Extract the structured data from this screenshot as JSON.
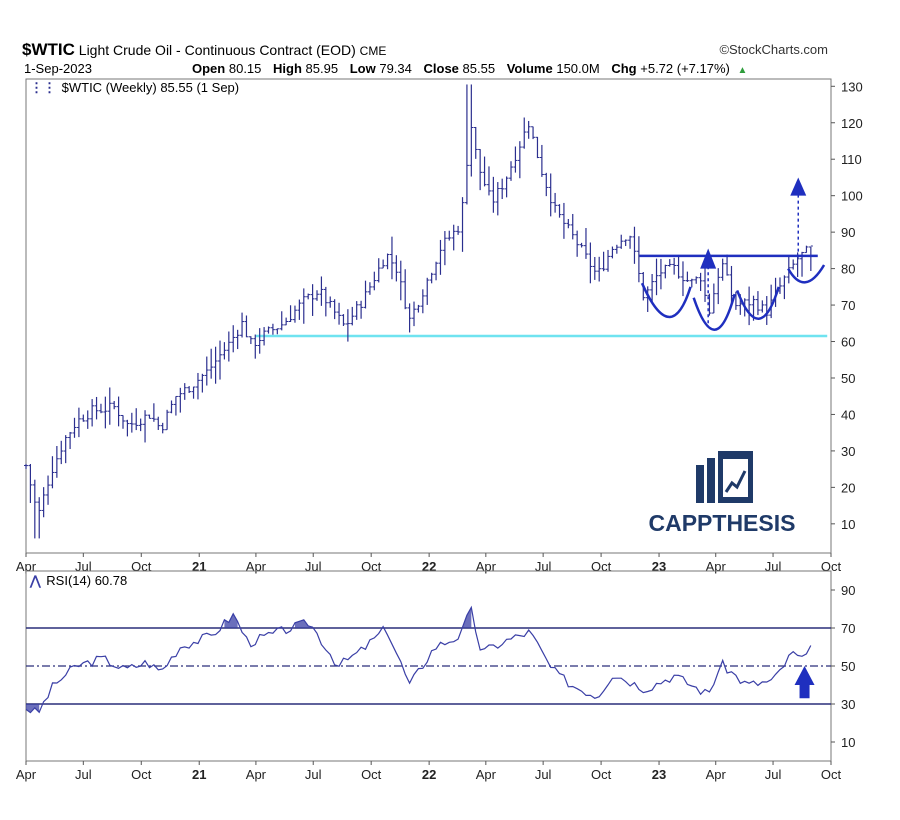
{
  "header": {
    "symbol": "$WTIC",
    "name": "Light Crude Oil - Continuous Contract (EOD)",
    "exchange": "CME",
    "credit": "©StockCharts.com",
    "date": "1-Sep-2023",
    "open_label": "Open",
    "open": "80.15",
    "high_label": "High",
    "high": "85.95",
    "low_label": "Low",
    "low": "79.34",
    "close_label": "Close",
    "close": "85.55",
    "volume_label": "Volume",
    "volume": "150.0M",
    "chg_label": "Chg",
    "chg": "+5.72 (+7.17%)"
  },
  "colors": {
    "bars": "#2b2f8f",
    "annotation": "#1f2fbf",
    "support": "#6fe3f0",
    "rsi_line": "#3a3fa6",
    "rsi_fill": "#3a3fa6",
    "logo": "#1f3a68"
  },
  "chart_data": [
    {
      "type": "ohlc",
      "legend": "$WTIC (Weekly) 85.55 (1 Sep)",
      "y_axis_side": "right",
      "ylim": [
        2,
        132
      ],
      "y_ticks": [
        10,
        20,
        30,
        40,
        50,
        60,
        70,
        80,
        90,
        100,
        110,
        120,
        130
      ],
      "x_range": [
        "2020-04-01",
        "2023-10-01"
      ],
      "x_ticks": [
        {
          "date": "2020-04-01",
          "label": "Apr",
          "bold": false
        },
        {
          "date": "2020-07-01",
          "label": "Jul",
          "bold": false
        },
        {
          "date": "2020-10-01",
          "label": "Oct",
          "bold": false
        },
        {
          "date": "2021-01-01",
          "label": "21",
          "bold": true
        },
        {
          "date": "2021-04-01",
          "label": "Apr",
          "bold": false
        },
        {
          "date": "2021-07-01",
          "label": "Jul",
          "bold": false
        },
        {
          "date": "2021-10-01",
          "label": "Oct",
          "bold": false
        },
        {
          "date": "2022-01-01",
          "label": "22",
          "bold": true
        },
        {
          "date": "2022-04-01",
          "label": "Apr",
          "bold": false
        },
        {
          "date": "2022-07-01",
          "label": "Jul",
          "bold": false
        },
        {
          "date": "2022-10-01",
          "label": "Oct",
          "bold": false
        },
        {
          "date": "2023-01-01",
          "label": "23",
          "bold": true
        },
        {
          "date": "2023-04-01",
          "label": "Apr",
          "bold": false
        },
        {
          "date": "2023-07-01",
          "label": "Jul",
          "bold": false
        },
        {
          "date": "2023-10-01",
          "label": "Oct",
          "bold": false
        }
      ],
      "price_path": [
        [
          "2020-04-01",
          26
        ],
        [
          "2020-04-20",
          12
        ],
        [
          "2020-05-10",
          24
        ],
        [
          "2020-06-01",
          33
        ],
        [
          "2020-06-20",
          38
        ],
        [
          "2020-07-15",
          41
        ],
        [
          "2020-08-20",
          42
        ],
        [
          "2020-09-10",
          37
        ],
        [
          "2020-10-15",
          40
        ],
        [
          "2020-11-01",
          36
        ],
        [
          "2020-11-25",
          45
        ],
        [
          "2020-12-20",
          48
        ],
        [
          "2021-01-15",
          52
        ],
        [
          "2021-02-20",
          60
        ],
        [
          "2021-03-10",
          65
        ],
        [
          "2021-03-25",
          59
        ],
        [
          "2021-04-15",
          62
        ],
        [
          "2021-05-15",
          65
        ],
        [
          "2021-06-15",
          71
        ],
        [
          "2021-07-10",
          74
        ],
        [
          "2021-08-20",
          64
        ],
        [
          "2021-09-20",
          72
        ],
        [
          "2021-10-25",
          84
        ],
        [
          "2021-11-10",
          80
        ],
        [
          "2021-12-01",
          66
        ],
        [
          "2021-12-20",
          73
        ],
        [
          "2022-01-20",
          86
        ],
        [
          "2022-02-20",
          92
        ],
        [
          "2022-03-08",
          120
        ],
        [
          "2022-03-20",
          108
        ],
        [
          "2022-04-10",
          98
        ],
        [
          "2022-05-01",
          104
        ],
        [
          "2022-06-08",
          120
        ],
        [
          "2022-06-30",
          106
        ],
        [
          "2022-07-20",
          96
        ],
        [
          "2022-08-20",
          88
        ],
        [
          "2022-09-25",
          78
        ],
        [
          "2022-10-20",
          86
        ],
        [
          "2022-11-15",
          90
        ],
        [
          "2022-12-08",
          72
        ],
        [
          "2023-01-01",
          79
        ],
        [
          "2023-01-25",
          80
        ],
        [
          "2023-02-20",
          76
        ],
        [
          "2023-03-10",
          78
        ],
        [
          "2023-03-20",
          67
        ],
        [
          "2023-04-10",
          82
        ],
        [
          "2023-05-01",
          70
        ],
        [
          "2023-06-01",
          71
        ],
        [
          "2023-06-20",
          68
        ],
        [
          "2023-07-15",
          76
        ],
        [
          "2023-08-10",
          83
        ],
        [
          "2023-09-01",
          85.55
        ]
      ],
      "support_line": {
        "value": 61.5,
        "from": "2021-04-01",
        "to": "2023-09-25"
      },
      "resistance_line": {
        "value": 83.5,
        "from": "2022-12-01",
        "to": "2023-09-10"
      },
      "annotations": [
        "cup-left",
        "head",
        "cup-right",
        "handle-arc",
        "measured-move-arrow",
        "neckline-arrow"
      ]
    },
    {
      "type": "line",
      "legend": "RSI(14) 60.78",
      "ylim": [
        0,
        100
      ],
      "y_ticks": [
        10,
        30,
        50,
        70,
        90
      ],
      "levels": {
        "overbought": 70,
        "mid": 50,
        "oversold": 30
      },
      "rsi_path": [
        [
          "2020-04-01",
          28
        ],
        [
          "2020-04-20",
          25
        ],
        [
          "2020-05-15",
          40
        ],
        [
          "2020-06-20",
          50
        ],
        [
          "2020-08-01",
          54
        ],
        [
          "2020-09-05",
          48
        ],
        [
          "2020-10-10",
          52
        ],
        [
          "2020-11-01",
          47
        ],
        [
          "2020-12-01",
          60
        ],
        [
          "2021-01-20",
          66
        ],
        [
          "2021-02-25",
          77
        ],
        [
          "2021-03-20",
          62
        ],
        [
          "2021-04-20",
          66
        ],
        [
          "2021-06-25",
          73
        ],
        [
          "2021-08-10",
          50
        ],
        [
          "2021-09-15",
          58
        ],
        [
          "2021-10-25",
          70
        ],
        [
          "2021-12-01",
          40
        ],
        [
          "2022-01-10",
          60
        ],
        [
          "2022-02-20",
          66
        ],
        [
          "2022-03-08",
          80
        ],
        [
          "2022-03-25",
          57
        ],
        [
          "2022-05-01",
          63
        ],
        [
          "2022-06-10",
          68
        ],
        [
          "2022-07-15",
          48
        ],
        [
          "2022-08-15",
          40
        ],
        [
          "2022-09-25",
          34
        ],
        [
          "2022-10-20",
          46
        ],
        [
          "2022-12-10",
          38
        ],
        [
          "2023-01-25",
          45
        ],
        [
          "2023-03-20",
          35
        ],
        [
          "2023-04-10",
          51
        ],
        [
          "2023-05-20",
          40
        ],
        [
          "2023-07-01",
          42
        ],
        [
          "2023-08-01",
          57
        ],
        [
          "2023-08-20",
          52
        ],
        [
          "2023-09-01",
          60.78
        ]
      ],
      "annotations": [
        "rsi-up-arrow"
      ]
    }
  ],
  "watermark": {
    "text": "CAPPTHESIS"
  }
}
